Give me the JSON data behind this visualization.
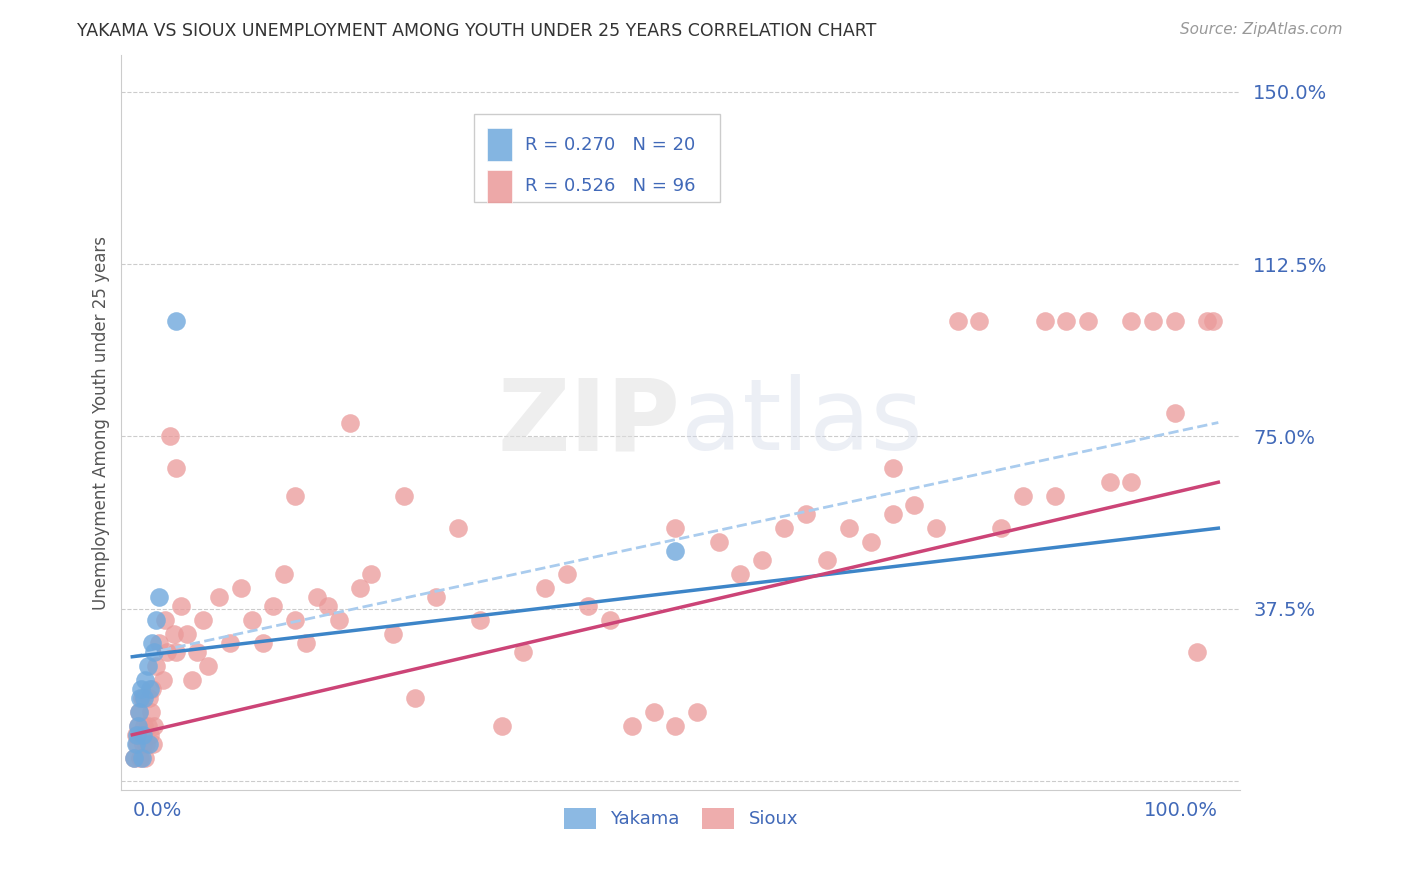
{
  "title": "YAKAMA VS SIOUX UNEMPLOYMENT AMONG YOUTH UNDER 25 YEARS CORRELATION CHART",
  "source": "Source: ZipAtlas.com",
  "ylabel": "Unemployment Among Youth under 25 years",
  "yakama_color": "#6fa8dc",
  "sioux_color": "#ea9999",
  "yakama_line_color": "#3d85c8",
  "sioux_line_color": "#cc4477",
  "dashed_line_color": "#aaccee",
  "legend_R_yakama": "R = 0.270",
  "legend_N_yakama": "N = 20",
  "legend_R_sioux": "R = 0.526",
  "legend_N_sioux": "N = 96",
  "yakama_x": [
    0.002,
    0.003,
    0.004,
    0.005,
    0.006,
    0.007,
    0.008,
    0.009,
    0.01,
    0.011,
    0.012,
    0.014,
    0.015,
    0.016,
    0.018,
    0.02,
    0.022,
    0.025,
    0.04,
    0.5
  ],
  "yakama_y": [
    0.05,
    0.08,
    0.1,
    0.12,
    0.15,
    0.18,
    0.2,
    0.05,
    0.1,
    0.18,
    0.22,
    0.25,
    0.08,
    0.2,
    0.3,
    0.28,
    0.35,
    0.4,
    1.0,
    0.5
  ],
  "sioux_x": [
    0.002,
    0.003,
    0.004,
    0.005,
    0.006,
    0.007,
    0.008,
    0.009,
    0.01,
    0.011,
    0.012,
    0.013,
    0.014,
    0.015,
    0.016,
    0.017,
    0.018,
    0.019,
    0.02,
    0.022,
    0.025,
    0.028,
    0.03,
    0.032,
    0.035,
    0.038,
    0.04,
    0.045,
    0.05,
    0.055,
    0.06,
    0.065,
    0.07,
    0.08,
    0.09,
    0.1,
    0.11,
    0.12,
    0.13,
    0.14,
    0.15,
    0.16,
    0.17,
    0.18,
    0.19,
    0.2,
    0.21,
    0.22,
    0.24,
    0.26,
    0.28,
    0.3,
    0.32,
    0.34,
    0.36,
    0.38,
    0.4,
    0.42,
    0.44,
    0.46,
    0.48,
    0.5,
    0.52,
    0.54,
    0.56,
    0.58,
    0.6,
    0.62,
    0.64,
    0.66,
    0.68,
    0.7,
    0.72,
    0.74,
    0.76,
    0.78,
    0.8,
    0.82,
    0.84,
    0.86,
    0.88,
    0.9,
    0.92,
    0.94,
    0.96,
    0.98,
    0.99,
    0.995,
    0.04,
    0.15,
    0.25,
    0.5,
    0.7,
    0.85,
    0.92,
    0.96
  ],
  "sioux_y": [
    0.05,
    0.1,
    0.08,
    0.12,
    0.15,
    0.05,
    0.1,
    0.18,
    0.08,
    0.12,
    0.05,
    0.08,
    0.12,
    0.18,
    0.1,
    0.15,
    0.2,
    0.08,
    0.12,
    0.25,
    0.3,
    0.22,
    0.35,
    0.28,
    0.75,
    0.32,
    0.28,
    0.38,
    0.32,
    0.22,
    0.28,
    0.35,
    0.25,
    0.4,
    0.3,
    0.42,
    0.35,
    0.3,
    0.38,
    0.45,
    0.35,
    0.3,
    0.4,
    0.38,
    0.35,
    0.78,
    0.42,
    0.45,
    0.32,
    0.18,
    0.4,
    0.55,
    0.35,
    0.12,
    0.28,
    0.42,
    0.45,
    0.38,
    0.35,
    0.12,
    0.15,
    0.12,
    0.15,
    0.52,
    0.45,
    0.48,
    0.55,
    0.58,
    0.48,
    0.55,
    0.52,
    0.58,
    0.6,
    0.55,
    1.0,
    1.0,
    0.55,
    0.62,
    1.0,
    1.0,
    1.0,
    0.65,
    0.65,
    1.0,
    1.0,
    0.28,
    1.0,
    1.0,
    0.68,
    0.62,
    0.62,
    0.55,
    0.68,
    0.62,
    1.0,
    0.8
  ],
  "yakama_trend": [
    0.27,
    0.55
  ],
  "sioux_trend": [
    0.1,
    0.65
  ],
  "dashed_trend": [
    0.27,
    0.78
  ],
  "xlim": [
    0.0,
    1.0
  ],
  "ylim": [
    0.0,
    1.5
  ],
  "ytick_vals": [
    0.0,
    0.375,
    0.75,
    1.125,
    1.5
  ],
  "ytick_labels": [
    "",
    "37.5%",
    "75.0%",
    "112.5%",
    "150.0%"
  ]
}
